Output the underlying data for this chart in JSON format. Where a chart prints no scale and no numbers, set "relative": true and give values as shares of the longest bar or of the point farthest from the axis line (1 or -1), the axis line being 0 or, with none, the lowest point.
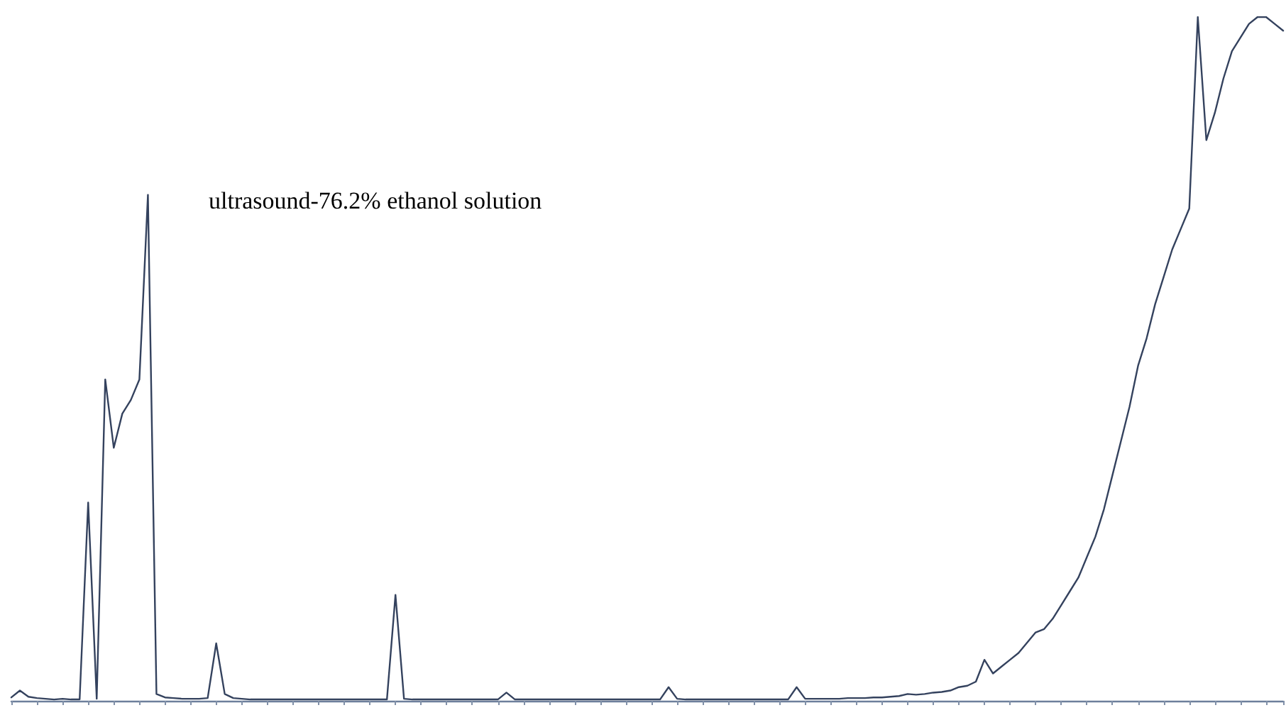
{
  "chart_data": {
    "type": "line",
    "relative": true,
    "tick_labels": false,
    "grid": false,
    "line_style": "solid",
    "annotations": [
      "ultrasound-76.2% ethanol solution"
    ],
    "categories": [
      null,
      null,
      null,
      null,
      null,
      null,
      null,
      null,
      null,
      null,
      null,
      null,
      null,
      null,
      null,
      null,
      null,
      null,
      null,
      null,
      null,
      null,
      null,
      null,
      null,
      null,
      null,
      null,
      null,
      null,
      null,
      null,
      null,
      null,
      null,
      null,
      null,
      null,
      null,
      null,
      null,
      null,
      null,
      null,
      null,
      null,
      null,
      null,
      null,
      null,
      null,
      null,
      null,
      null,
      null,
      null,
      null,
      null,
      null,
      null,
      null,
      null,
      null,
      null,
      null,
      null,
      null,
      null,
      null,
      null,
      null,
      null,
      null,
      null,
      null,
      null,
      null,
      null,
      null,
      null,
      null,
      null,
      null,
      null,
      null,
      null,
      null,
      null,
      null,
      null,
      null,
      null,
      null,
      null,
      null,
      null,
      null,
      null,
      null,
      null,
      null,
      null,
      null,
      null,
      null,
      null,
      null,
      null,
      null,
      null,
      null,
      null,
      null,
      null,
      null,
      null,
      null,
      null,
      null,
      null,
      null,
      null,
      null,
      null,
      null,
      null,
      null,
      null,
      null,
      null,
      null,
      null,
      null,
      null,
      null,
      null,
      null,
      null,
      null,
      null,
      null,
      null,
      null,
      null,
      null,
      null,
      null,
      null,
      null,
      null
    ],
    "series": [
      {
        "color": "#34425e",
        "values": [
          0.005,
          0.015,
          0.006,
          0.004,
          0.003,
          0.002,
          0.003,
          0.002,
          0.002,
          0.29,
          0.003,
          0.47,
          0.37,
          0.42,
          0.44,
          0.47,
          0.74,
          0.01,
          0.005,
          0.004,
          0.003,
          0.003,
          0.003,
          0.004,
          0.084,
          0.01,
          0.004,
          0.003,
          0.002,
          0.002,
          0.002,
          0.002,
          0.002,
          0.002,
          0.002,
          0.002,
          0.002,
          0.002,
          0.002,
          0.002,
          0.002,
          0.002,
          0.002,
          0.002,
          0.002,
          0.155,
          0.003,
          0.002,
          0.002,
          0.002,
          0.002,
          0.002,
          0.002,
          0.002,
          0.002,
          0.002,
          0.002,
          0.002,
          0.012,
          0.002,
          0.002,
          0.002,
          0.002,
          0.002,
          0.002,
          0.002,
          0.002,
          0.002,
          0.002,
          0.002,
          0.002,
          0.002,
          0.002,
          0.002,
          0.002,
          0.002,
          0.002,
          0.02,
          0.003,
          0.002,
          0.002,
          0.002,
          0.002,
          0.002,
          0.002,
          0.002,
          0.002,
          0.002,
          0.002,
          0.002,
          0.002,
          0.002,
          0.02,
          0.003,
          0.003,
          0.003,
          0.003,
          0.003,
          0.004,
          0.004,
          0.004,
          0.005,
          0.005,
          0.006,
          0.007,
          0.01,
          0.009,
          0.01,
          0.012,
          0.013,
          0.015,
          0.02,
          0.022,
          0.028,
          0.06,
          0.04,
          0.05,
          0.06,
          0.07,
          0.085,
          0.1,
          0.105,
          0.12,
          0.14,
          0.16,
          0.18,
          0.21,
          0.24,
          0.28,
          0.33,
          0.38,
          0.43,
          0.49,
          0.53,
          0.58,
          0.62,
          0.66,
          0.69,
          0.72,
          1.0,
          0.82,
          0.86,
          0.91,
          0.95,
          0.97,
          0.99,
          1.0,
          1.0,
          0.99,
          0.98
        ]
      }
    ]
  }
}
